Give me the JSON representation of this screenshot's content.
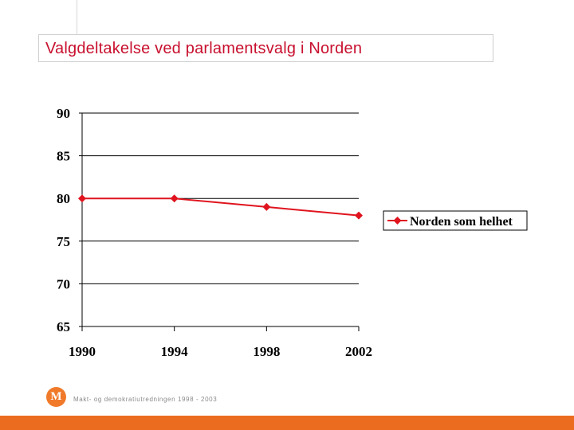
{
  "slide": {
    "title": "Valgdeltakelse ved parlamentsvalg i Norden"
  },
  "footer": {
    "logo_letter": "M",
    "text": "Makt- og demokratiutredningen 1998 - 2003"
  },
  "colors": {
    "series": "#e0141e",
    "bottom_bar": "#ec6c1f",
    "logo": "#f07a2a"
  },
  "chart_data": {
    "type": "line",
    "title": "",
    "xlabel": "",
    "ylabel": "",
    "x": [
      "1990",
      "1994",
      "1998",
      "2002"
    ],
    "series": [
      {
        "name": "Norden som helhet",
        "values": [
          80,
          80,
          79,
          78
        ]
      }
    ],
    "ylim": [
      65,
      90
    ],
    "yticks": [
      65,
      70,
      75,
      80,
      85,
      90
    ],
    "grid": true,
    "legend": "right"
  }
}
